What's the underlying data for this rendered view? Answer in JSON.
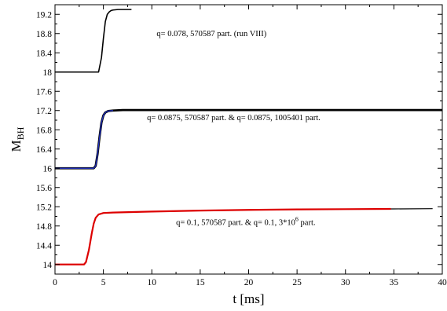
{
  "chart_data": {
    "type": "line",
    "xlabel": "t [ms]",
    "ylabel": "M",
    "ylabel_sub": "BH",
    "xlim": [
      0,
      40
    ],
    "ylim": [
      13.8,
      19.4
    ],
    "xticks": [
      0,
      5,
      10,
      15,
      20,
      25,
      30,
      35,
      40
    ],
    "yticks": [
      14,
      14.4,
      14.8,
      15.2,
      15.6,
      16,
      16.4,
      16.8,
      17.2,
      17.6,
      18,
      18.4,
      18.8,
      19.2
    ],
    "xtick_labels": [
      "0",
      "5",
      "10",
      "15",
      "20",
      "25",
      "30",
      "35",
      "40"
    ],
    "ytick_labels": [
      "14",
      "14.4",
      "14.8",
      "15.2",
      "15.6",
      "16",
      "16.4",
      "16.8",
      "17.2",
      "17.6",
      "18",
      "18.4",
      "18.8",
      "19.2"
    ],
    "grid": false,
    "series": [
      {
        "color": "#000000",
        "width": 1.6,
        "x": [
          0,
          4.5,
          4.8,
          5.0,
          5.2,
          5.4,
          5.6,
          5.8,
          6.0,
          6.5,
          7.0,
          7.9
        ],
        "y": [
          18.0,
          18.0,
          18.3,
          18.7,
          19.05,
          19.2,
          19.25,
          19.28,
          19.29,
          19.3,
          19.3,
          19.3
        ]
      },
      {
        "color": "#000000",
        "width": 2.8,
        "x": [
          0,
          4.0,
          4.2,
          4.4,
          4.6,
          4.8,
          5.0,
          5.2,
          5.5,
          6.0,
          7.0,
          10,
          20,
          30,
          40
        ],
        "y": [
          16.0,
          16.0,
          16.05,
          16.3,
          16.65,
          16.95,
          17.1,
          17.16,
          17.19,
          17.2,
          17.21,
          17.21,
          17.21,
          17.21,
          17.21
        ]
      },
      {
        "color": "#2233cc",
        "width": 1.2,
        "x": [
          0,
          4.0,
          4.2,
          4.4,
          4.6,
          4.8,
          5.0,
          5.2,
          5.5,
          6.0
        ],
        "y": [
          16.0,
          16.0,
          16.05,
          16.3,
          16.65,
          16.95,
          17.1,
          17.16,
          17.19,
          17.2
        ]
      },
      {
        "color": "#000000",
        "width": 1.2,
        "x": [
          0,
          3.0,
          3.2,
          3.5,
          3.8,
          4.0,
          4.2,
          4.5,
          5.0,
          6.0,
          10,
          15,
          20,
          25,
          30,
          35,
          39
        ],
        "y": [
          14.0,
          14.0,
          14.05,
          14.3,
          14.65,
          14.85,
          14.97,
          15.04,
          15.07,
          15.08,
          15.1,
          15.12,
          15.135,
          15.145,
          15.15,
          15.155,
          15.16
        ]
      },
      {
        "color": "#dd0000",
        "width": 2.2,
        "x": [
          0,
          3.0,
          3.2,
          3.5,
          3.8,
          4.0,
          4.2,
          4.5,
          5.0,
          6.0,
          10,
          15,
          20,
          25,
          30,
          34.7
        ],
        "y": [
          14.0,
          14.0,
          14.05,
          14.3,
          14.65,
          14.85,
          14.97,
          15.04,
          15.07,
          15.08,
          15.1,
          15.12,
          15.135,
          15.145,
          15.15,
          15.155
        ]
      }
    ],
    "annotations": [
      {
        "text": "q= 0.078, 570587 part. (run VIII)",
        "x": 10.5,
        "y": 18.75
      },
      {
        "text": "q= 0.0875, 570587 part.  &  q= 0.0875, 1005401 part.",
        "x": 9.5,
        "y": 17.0
      },
      {
        "text": "q= 0.1, 570587 part.  &  q= 0.1, 3*10",
        "sup": "6",
        "tail": " part.",
        "x": 12.5,
        "y": 14.82
      }
    ]
  }
}
